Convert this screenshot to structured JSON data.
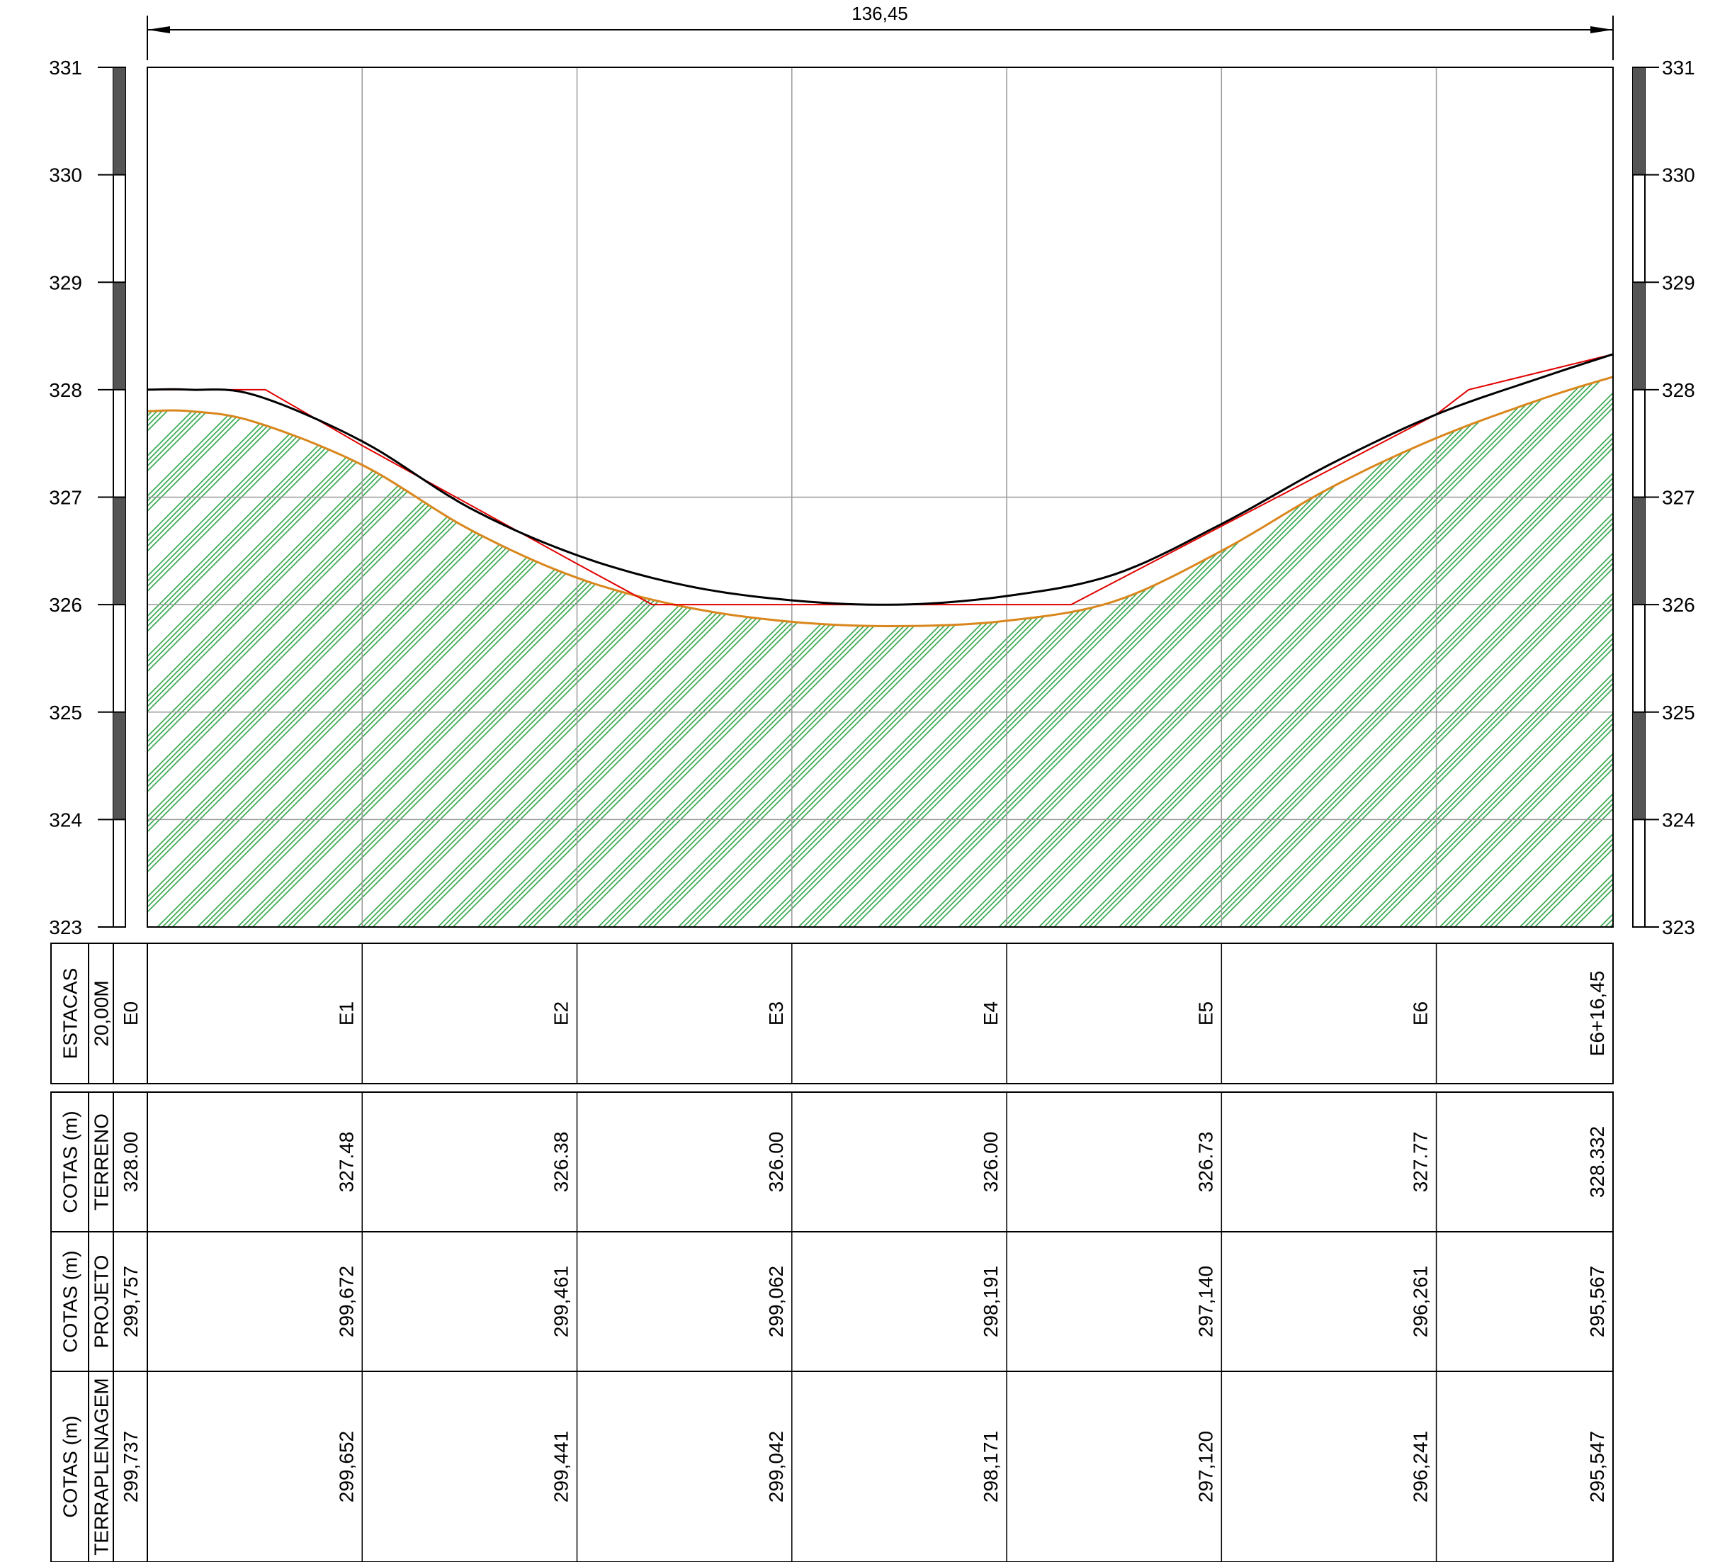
{
  "drawing": {
    "overall_length_label": "136,45",
    "elevation_axis": {
      "min": 323,
      "max": 331,
      "labels": [
        "323",
        "324",
        "325",
        "326",
        "327",
        "328",
        "329",
        "330",
        "331"
      ]
    },
    "colors": {
      "terrain": "#000000",
      "project": "#e10000",
      "earthwork": "#d9861c",
      "hatch": "#1f9d3a",
      "grid": "#9a9a9a",
      "scale_dark": "#555555"
    }
  },
  "table": {
    "rows": [
      {
        "title": "ESTACAS",
        "subtitle": "20,00M",
        "values": [
          "E0",
          "E1",
          "E2",
          "E3",
          "E4",
          "E5",
          "E6",
          "E6+16,45"
        ]
      },
      {
        "title": "COTAS (m)",
        "subtitle": "TERRENO",
        "values": [
          "328.00",
          "327.48",
          "326.38",
          "326.00",
          "326.00",
          "326.73",
          "327.77",
          "328.332"
        ]
      },
      {
        "title": "COTAS (m)",
        "subtitle": "PROJETO",
        "values": [
          "299,757",
          "299,672",
          "299,461",
          "299,062",
          "298,191",
          "297,140",
          "296,261",
          "295,567"
        ]
      },
      {
        "title": "COTAS (m)",
        "subtitle": "TERRAPLENAGEM",
        "values": [
          "299,737",
          "299,652",
          "299,441",
          "299,042",
          "298,171",
          "297,120",
          "296,241",
          "295,547"
        ]
      }
    ]
  },
  "chart_data": {
    "type": "line",
    "x_unit": "m",
    "xlim": [
      0,
      136.45
    ],
    "ylim": [
      323,
      331
    ],
    "series": [
      {
        "x": [
          0,
          4,
          10,
          20,
          30,
          40,
          50,
          60,
          70,
          80,
          90,
          100,
          110,
          120,
          130,
          136.45
        ],
        "y": [
          328.0,
          328.0,
          327.95,
          327.52,
          326.9,
          326.46,
          326.18,
          326.04,
          326.0,
          326.08,
          326.28,
          326.75,
          327.3,
          327.77,
          328.12,
          328.33
        ]
      },
      {
        "x": [
          0,
          11,
          20,
          40,
          47,
          60,
          71,
          86,
          100,
          120,
          123,
          136.45
        ],
        "y": [
          328.0,
          328.0,
          327.48,
          326.38,
          326.0,
          326.0,
          326.0,
          326.0,
          326.73,
          327.77,
          328.0,
          328.33
        ]
      },
      {
        "x": [
          0,
          4,
          10,
          20,
          30,
          40,
          50,
          60,
          70,
          80,
          90,
          100,
          110,
          120,
          130,
          136.45
        ],
        "y": [
          327.8,
          327.8,
          327.7,
          327.3,
          326.7,
          326.25,
          325.98,
          325.84,
          325.8,
          325.85,
          326.03,
          326.5,
          327.08,
          327.55,
          327.92,
          328.12
        ]
      }
    ]
  }
}
